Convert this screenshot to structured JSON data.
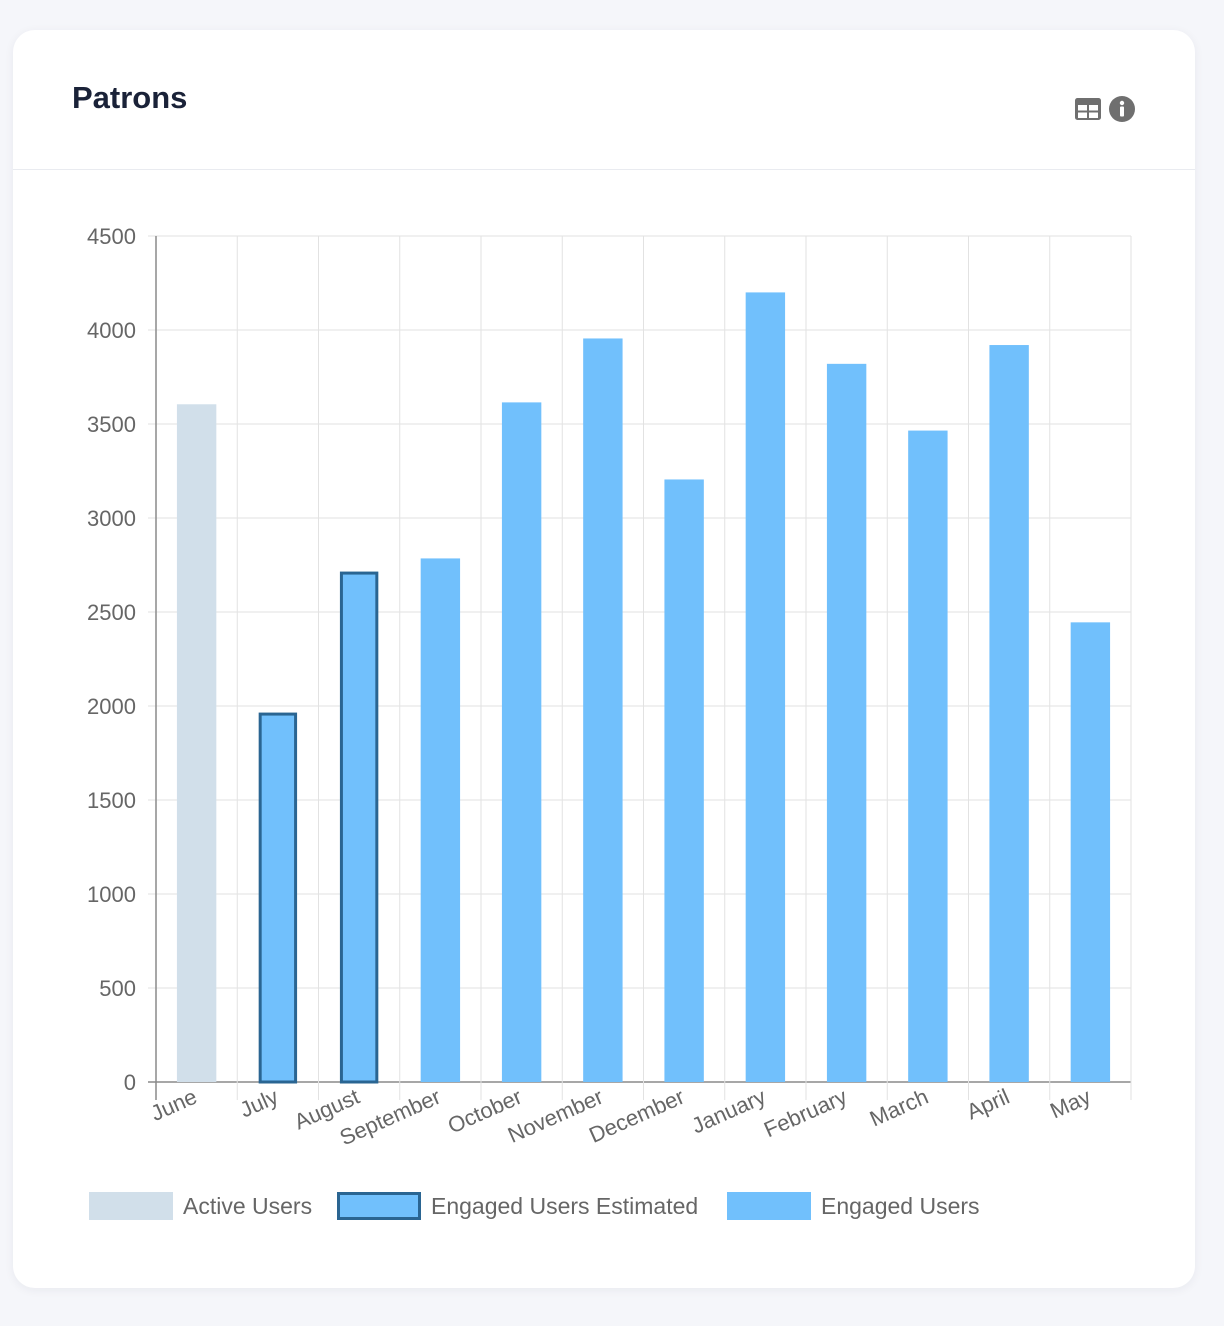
{
  "card": {
    "title": "Patrons",
    "icons": {
      "table": "table-icon",
      "info": "info-icon"
    }
  },
  "chart_data": {
    "type": "bar",
    "title": "Patrons",
    "categories": [
      "June",
      "July",
      "August",
      "September",
      "October",
      "November",
      "December",
      "January",
      "February",
      "March",
      "April",
      "May"
    ],
    "series": [
      {
        "name": "Active Users",
        "color": "#d1dfea",
        "border": null,
        "values": [
          3605,
          null,
          null,
          null,
          null,
          null,
          null,
          null,
          null,
          null,
          null,
          null
        ]
      },
      {
        "name": "Engaged Users Estimated",
        "color": "#71c0fc",
        "border": "#2a6592",
        "values": [
          null,
          1965,
          2715,
          null,
          null,
          null,
          null,
          null,
          null,
          null,
          null,
          null
        ]
      },
      {
        "name": "Engaged Users",
        "color": "#71c0fc",
        "border": null,
        "values": [
          null,
          null,
          null,
          2785,
          3615,
          3955,
          3205,
          4200,
          3820,
          3465,
          3920,
          2445
        ]
      }
    ],
    "ylim": [
      0,
      4500
    ],
    "yticks": [
      0,
      500,
      1000,
      1500,
      2000,
      2500,
      3000,
      3500,
      4000,
      4500
    ],
    "xlabel": "",
    "ylabel": "",
    "grid": true,
    "legend": "bottom"
  }
}
